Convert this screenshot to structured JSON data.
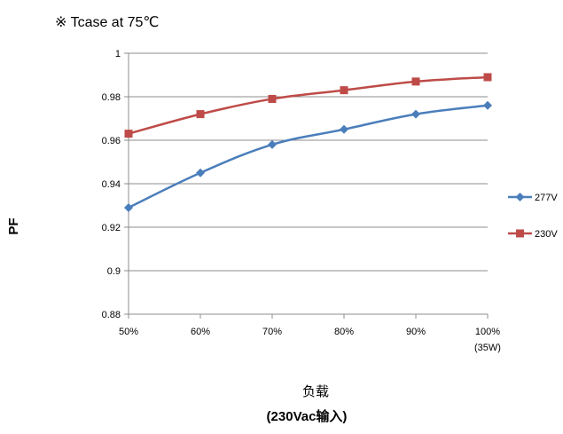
{
  "chart_data": {
    "type": "line",
    "title": "※ Tcase at 75℃",
    "ylabel": "PF",
    "xlabel": "负载",
    "xlabel_sub": "(230Vac输入)",
    "categories": [
      "50%",
      "60%",
      "70%",
      "80%",
      "90%",
      "100%"
    ],
    "last_category_sub": "(35W)",
    "ylim": [
      0.88,
      1.0
    ],
    "yticks": [
      0.88,
      0.9,
      0.92,
      0.94,
      0.96,
      0.98,
      1
    ],
    "ytick_labels": [
      "0.88",
      "0.9",
      "0.92",
      "0.94",
      "0.96",
      "0.98",
      "1"
    ],
    "grid": true,
    "legend_position": "right",
    "series": [
      {
        "name": "277V",
        "values": [
          0.929,
          0.945,
          0.958,
          0.965,
          0.972,
          0.976
        ],
        "color": "#4a7ebb",
        "marker": "diamond"
      },
      {
        "name": "230V",
        "values": [
          0.963,
          0.972,
          0.979,
          0.983,
          0.987,
          0.989
        ],
        "color": "#be4b48",
        "marker": "square"
      }
    ]
  }
}
